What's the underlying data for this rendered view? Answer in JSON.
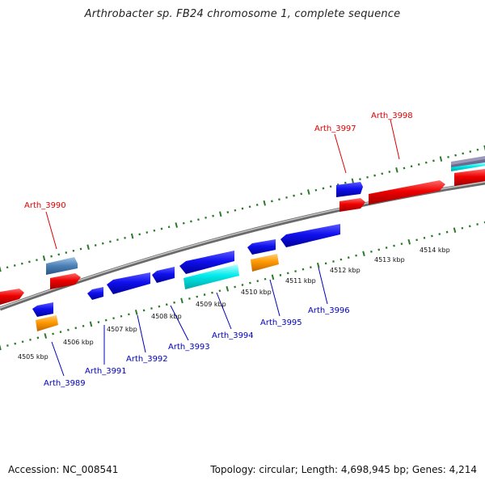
{
  "title": "Arthrobacter sp. FB24 chromosome 1, complete sequence",
  "footer": {
    "accession": "Accession: NC_008541",
    "summary": "Topology: circular; Length: 4,698,945 bp; Genes: 4,214"
  },
  "scale_labels": [
    "4505 kbp",
    "4506 kbp",
    "4507 kbp",
    "4508 kbp",
    "4509 kbp",
    "4510 kbp",
    "4511 kbp",
    "4512 kbp",
    "4513 kbp",
    "4514 kbp"
  ],
  "gene_labels_forward": [
    "Arth_3990",
    "Arth_3997",
    "Arth_3998"
  ],
  "gene_labels_reverse": [
    "Arth_3989",
    "Arth_3991",
    "Arth_3992",
    "Arth_3993",
    "Arth_3994",
    "Arth_3995",
    "Arth_3996"
  ],
  "colors": {
    "forward_label": "#dd0000",
    "reverse_label": "#0000bb",
    "tick": "#2a7a2a",
    "backbone": "#8a8a8a"
  }
}
